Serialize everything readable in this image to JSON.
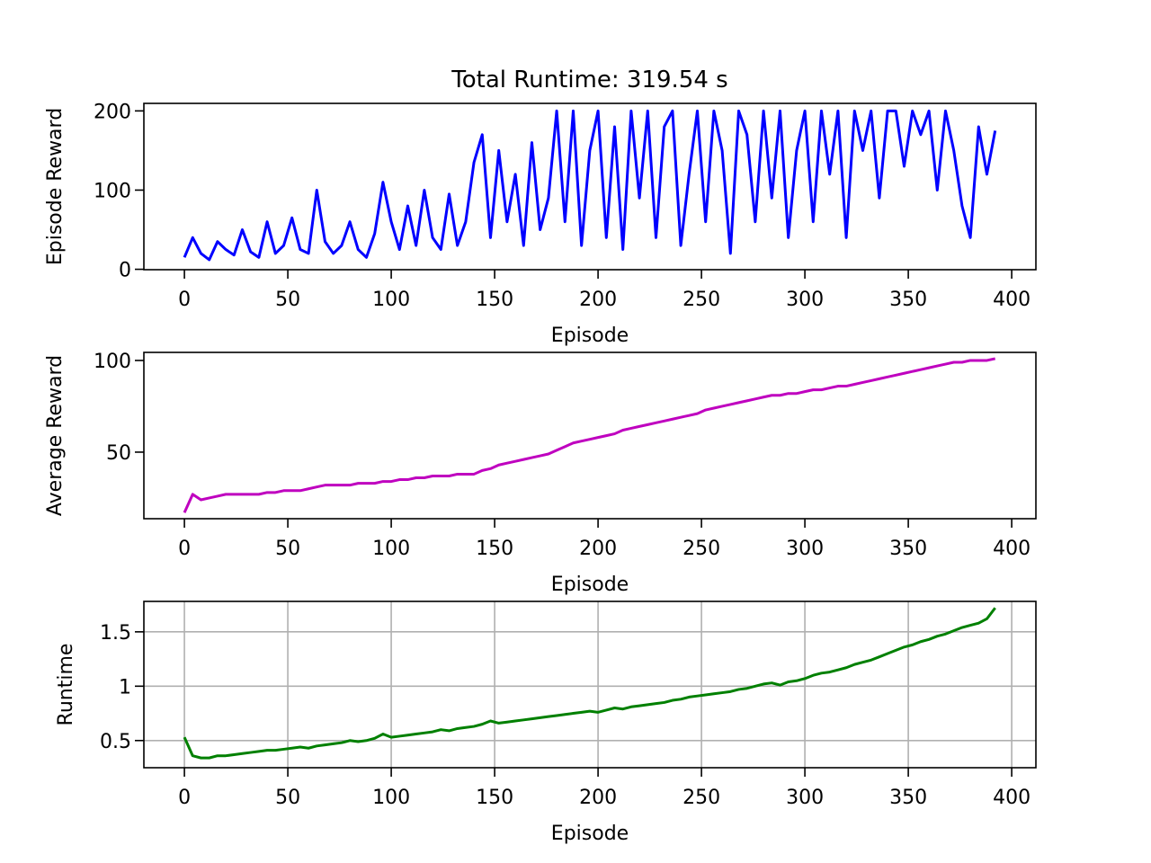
{
  "chart_data": [
    {
      "type": "line",
      "title": "Total Runtime: 319.54 s",
      "xlabel": "Episode",
      "ylabel": "Episode Reward",
      "color": "#0000ff",
      "grid": false,
      "xlim": [
        -19.6,
        411.7
      ],
      "ylim": [
        -0.5,
        209.5
      ],
      "xticks": [
        0,
        50,
        100,
        150,
        200,
        250,
        300,
        350,
        400
      ],
      "yticks": [
        0,
        100,
        200
      ],
      "x": [
        0,
        4,
        8,
        12,
        16,
        20,
        24,
        28,
        32,
        36,
        40,
        44,
        48,
        52,
        56,
        60,
        64,
        68,
        72,
        76,
        80,
        84,
        88,
        92,
        96,
        100,
        104,
        108,
        112,
        116,
        120,
        124,
        128,
        132,
        136,
        140,
        144,
        148,
        152,
        156,
        160,
        164,
        168,
        172,
        176,
        180,
        184,
        188,
        192,
        196,
        200,
        204,
        208,
        212,
        216,
        220,
        224,
        228,
        232,
        236,
        240,
        244,
        248,
        252,
        256,
        260,
        264,
        268,
        272,
        276,
        280,
        284,
        288,
        292,
        296,
        300,
        304,
        308,
        312,
        316,
        320,
        324,
        328,
        332,
        336,
        340,
        344,
        348,
        352,
        356,
        360,
        364,
        368,
        372,
        376,
        380,
        384,
        388,
        392
      ],
      "values": [
        15,
        40,
        20,
        12,
        35,
        25,
        18,
        50,
        22,
        15,
        60,
        20,
        30,
        65,
        25,
        20,
        100,
        35,
        20,
        30,
        60,
        25,
        15,
        45,
        110,
        60,
        25,
        80,
        30,
        100,
        40,
        25,
        95,
        30,
        60,
        135,
        170,
        40,
        150,
        60,
        120,
        30,
        160,
        50,
        90,
        200,
        60,
        200,
        30,
        150,
        200,
        40,
        180,
        25,
        200,
        90,
        200,
        40,
        180,
        200,
        30,
        120,
        200,
        60,
        200,
        150,
        20,
        200,
        170,
        60,
        200,
        90,
        200,
        40,
        150,
        200,
        60,
        200,
        120,
        200,
        40,
        200,
        150,
        200,
        90,
        200,
        200,
        130,
        200,
        170,
        200,
        100,
        200,
        150,
        80,
        40,
        180,
        120,
        175
      ]
    },
    {
      "type": "line",
      "xlabel": "Episode",
      "ylabel": "Average Reward",
      "color": "#bf00bf",
      "grid": false,
      "xlim": [
        -19.6,
        411.7
      ],
      "ylim": [
        13.7,
        104.4
      ],
      "xticks": [
        0,
        50,
        100,
        150,
        200,
        250,
        300,
        350,
        400
      ],
      "yticks": [
        50,
        100
      ],
      "x": [
        0,
        4,
        8,
        12,
        16,
        20,
        24,
        28,
        32,
        36,
        40,
        44,
        48,
        52,
        56,
        60,
        64,
        68,
        72,
        76,
        80,
        84,
        88,
        92,
        96,
        100,
        104,
        108,
        112,
        116,
        120,
        124,
        128,
        132,
        136,
        140,
        144,
        148,
        152,
        156,
        160,
        164,
        168,
        172,
        176,
        180,
        184,
        188,
        192,
        196,
        200,
        204,
        208,
        212,
        216,
        220,
        224,
        228,
        232,
        236,
        240,
        244,
        248,
        252,
        256,
        260,
        264,
        268,
        272,
        276,
        280,
        284,
        288,
        292,
        296,
        300,
        304,
        308,
        312,
        316,
        320,
        324,
        328,
        332,
        336,
        340,
        344,
        348,
        352,
        356,
        360,
        364,
        368,
        372,
        376,
        380,
        384,
        388,
        392
      ],
      "values": [
        17,
        27,
        24,
        25,
        26,
        27,
        27,
        27,
        27,
        27,
        28,
        28,
        29,
        29,
        29,
        30,
        31,
        32,
        32,
        32,
        32,
        33,
        33,
        33,
        34,
        34,
        35,
        35,
        36,
        36,
        37,
        37,
        37,
        38,
        38,
        38,
        40,
        41,
        43,
        44,
        45,
        46,
        47,
        48,
        49,
        51,
        53,
        55,
        56,
        57,
        58,
        59,
        60,
        62,
        63,
        64,
        65,
        66,
        67,
        68,
        69,
        70,
        71,
        73,
        74,
        75,
        76,
        77,
        78,
        79,
        80,
        81,
        81,
        82,
        82,
        83,
        84,
        84,
        85,
        86,
        86,
        87,
        88,
        89,
        90,
        91,
        92,
        93,
        94,
        95,
        96,
        97,
        98,
        99,
        99,
        100,
        100,
        100,
        101
      ]
    },
    {
      "type": "line",
      "xlabel": "Episode",
      "ylabel": "Runtime",
      "color": "#008000",
      "grid": true,
      "xlim": [
        -19.6,
        411.7
      ],
      "ylim": [
        0.25,
        1.78
      ],
      "xticks": [
        0,
        50,
        100,
        150,
        200,
        250,
        300,
        350,
        400
      ],
      "yticks": [
        0.5,
        1.0,
        1.5
      ],
      "x": [
        0,
        4,
        8,
        12,
        16,
        20,
        24,
        28,
        32,
        36,
        40,
        44,
        48,
        52,
        56,
        60,
        64,
        68,
        72,
        76,
        80,
        84,
        88,
        92,
        96,
        100,
        104,
        108,
        112,
        116,
        120,
        124,
        128,
        132,
        136,
        140,
        144,
        148,
        152,
        156,
        160,
        164,
        168,
        172,
        176,
        180,
        184,
        188,
        192,
        196,
        200,
        204,
        208,
        212,
        216,
        220,
        224,
        228,
        232,
        236,
        240,
        244,
        248,
        252,
        256,
        260,
        264,
        268,
        272,
        276,
        280,
        284,
        288,
        292,
        296,
        300,
        304,
        308,
        312,
        316,
        320,
        324,
        328,
        332,
        336,
        340,
        344,
        348,
        352,
        356,
        360,
        364,
        368,
        372,
        376,
        380,
        384,
        388,
        392
      ],
      "values": [
        0.53,
        0.36,
        0.34,
        0.34,
        0.36,
        0.36,
        0.37,
        0.38,
        0.39,
        0.4,
        0.41,
        0.41,
        0.42,
        0.43,
        0.44,
        0.43,
        0.45,
        0.46,
        0.47,
        0.48,
        0.5,
        0.49,
        0.5,
        0.52,
        0.56,
        0.53,
        0.54,
        0.55,
        0.56,
        0.57,
        0.58,
        0.6,
        0.59,
        0.61,
        0.62,
        0.63,
        0.65,
        0.68,
        0.66,
        0.67,
        0.68,
        0.69,
        0.7,
        0.71,
        0.72,
        0.73,
        0.74,
        0.75,
        0.76,
        0.77,
        0.76,
        0.78,
        0.8,
        0.79,
        0.81,
        0.82,
        0.83,
        0.84,
        0.85,
        0.87,
        0.88,
        0.9,
        0.91,
        0.92,
        0.93,
        0.94,
        0.95,
        0.97,
        0.98,
        1.0,
        1.02,
        1.03,
        1.01,
        1.04,
        1.05,
        1.07,
        1.1,
        1.12,
        1.13,
        1.15,
        1.17,
        1.2,
        1.22,
        1.24,
        1.27,
        1.3,
        1.33,
        1.36,
        1.38,
        1.41,
        1.43,
        1.46,
        1.48,
        1.51,
        1.54,
        1.56,
        1.58,
        1.62,
        1.72
      ]
    }
  ]
}
